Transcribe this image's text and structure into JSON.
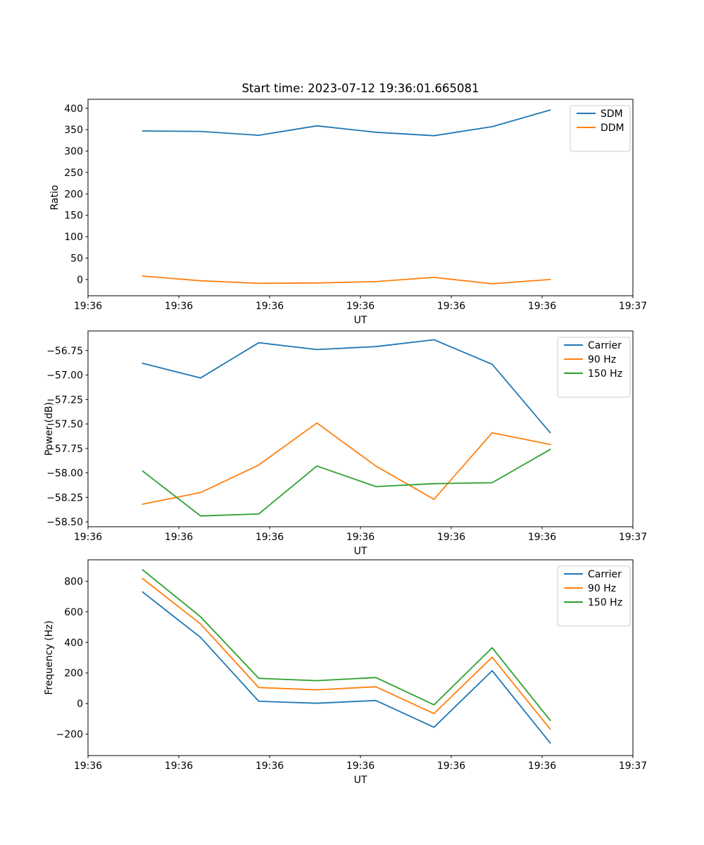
{
  "figure": {
    "title": "Start time: 2023-07-12 19:36:01.665081",
    "background_color": "#ffffff",
    "text_color": "#000000",
    "axes_edge_color": "#000000",
    "legend_border_color": "#cccccc",
    "palette": {
      "blue": "#1f77b4",
      "orange": "#ff7f0e",
      "green": "#2ca02c"
    }
  },
  "chart_data": [
    {
      "type": "line",
      "title": "Start time: 2023-07-12 19:36:01.665081",
      "xlabel": "UT",
      "ylabel": "Ratio",
      "grid": false,
      "legend": {
        "position": "upper right",
        "entries": [
          "SDM",
          "DDM"
        ]
      },
      "x_axis": {
        "unit": "seconds after 19:36:00",
        "lim": [
          0,
          60
        ],
        "tick_values": [
          0,
          10,
          20,
          30,
          40,
          50,
          60
        ],
        "tick_labels": [
          "19:36",
          "19:36",
          "19:36",
          "19:36",
          "19:36",
          "19:36",
          "19:37"
        ]
      },
      "y_axis": {
        "lim": [
          -38,
          421
        ],
        "tick_values": [
          0,
          50,
          100,
          150,
          200,
          250,
          300,
          350,
          400
        ],
        "tick_labels": [
          "0",
          "50",
          "100",
          "150",
          "200",
          "250",
          "300",
          "350",
          "400"
        ]
      },
      "x": [
        6.0,
        12.4,
        18.8,
        25.2,
        31.7,
        38.1,
        44.5,
        50.9
      ],
      "series": [
        {
          "name": "SDM",
          "color": "#1f77b4",
          "values": [
            347,
            346,
            337,
            359,
            344,
            336,
            357,
            396
          ]
        },
        {
          "name": "DDM",
          "color": "#ff7f0e",
          "values": [
            8,
            -3,
            -9,
            -8,
            -5,
            5,
            -10,
            0
          ]
        }
      ]
    },
    {
      "type": "line",
      "title": "",
      "xlabel": "UT",
      "ylabel": "Power (dB)",
      "grid": false,
      "legend": {
        "position": "upper right",
        "entries": [
          "Carrier",
          "90 Hz",
          "150 Hz"
        ]
      },
      "x_axis": {
        "unit": "seconds after 19:36:00",
        "lim": [
          0,
          60
        ],
        "tick_values": [
          0,
          10,
          20,
          30,
          40,
          50,
          60
        ],
        "tick_labels": [
          "19:36",
          "19:36",
          "19:36",
          "19:36",
          "19:36",
          "19:36",
          "19:37"
        ]
      },
      "y_axis": {
        "lim": [
          -58.55,
          -56.55
        ],
        "tick_values": [
          -58.5,
          -58.25,
          -58.0,
          -57.75,
          -57.5,
          -57.25,
          -57.0,
          -56.75
        ],
        "tick_labels": [
          "−58.50",
          "−58.25",
          "−58.00",
          "−57.75",
          "−57.50",
          "−57.25",
          "−57.00",
          "−56.75"
        ]
      },
      "x": [
        6.0,
        12.4,
        18.8,
        25.2,
        31.7,
        38.1,
        44.5,
        50.9
      ],
      "series": [
        {
          "name": "Carrier",
          "color": "#1f77b4",
          "values": [
            -56.88,
            -57.03,
            -56.67,
            -56.74,
            -56.71,
            -56.64,
            -56.89,
            -57.59
          ]
        },
        {
          "name": "90 Hz",
          "color": "#ff7f0e",
          "values": [
            -58.32,
            -58.2,
            -57.92,
            -57.49,
            -57.93,
            -58.27,
            -57.59,
            -57.71
          ]
        },
        {
          "name": "150 Hz",
          "color": "#2ca02c",
          "values": [
            -57.98,
            -58.44,
            -58.42,
            -57.93,
            -58.14,
            -58.11,
            -58.1,
            -57.76
          ]
        }
      ]
    },
    {
      "type": "line",
      "title": "",
      "xlabel": "UT",
      "ylabel": "Frequency (Hz)",
      "grid": false,
      "legend": {
        "position": "upper right",
        "entries": [
          "Carrier",
          "90 Hz",
          "150 Hz"
        ]
      },
      "x_axis": {
        "unit": "seconds after 19:36:00",
        "lim": [
          0,
          60
        ],
        "tick_values": [
          0,
          10,
          20,
          30,
          40,
          50,
          60
        ],
        "tick_labels": [
          "19:36",
          "19:36",
          "19:36",
          "19:36",
          "19:36",
          "19:36",
          "19:37"
        ]
      },
      "y_axis": {
        "lim": [
          -340,
          940
        ],
        "tick_values": [
          -200,
          0,
          200,
          400,
          600,
          800
        ],
        "tick_labels": [
          "−200",
          "0",
          "200",
          "400",
          "600",
          "800"
        ]
      },
      "x": [
        6.0,
        12.4,
        18.8,
        25.2,
        31.7,
        38.1,
        44.5,
        50.9
      ],
      "series": [
        {
          "name": "Carrier",
          "color": "#1f77b4",
          "values": [
            730,
            432,
            15,
            2,
            20,
            -155,
            215,
            -258
          ]
        },
        {
          "name": "90 Hz",
          "color": "#ff7f0e",
          "values": [
            818,
            520,
            105,
            90,
            110,
            -65,
            303,
            -168
          ]
        },
        {
          "name": "150 Hz",
          "color": "#2ca02c",
          "values": [
            875,
            567,
            165,
            150,
            170,
            -8,
            365,
            -110
          ]
        }
      ]
    }
  ]
}
